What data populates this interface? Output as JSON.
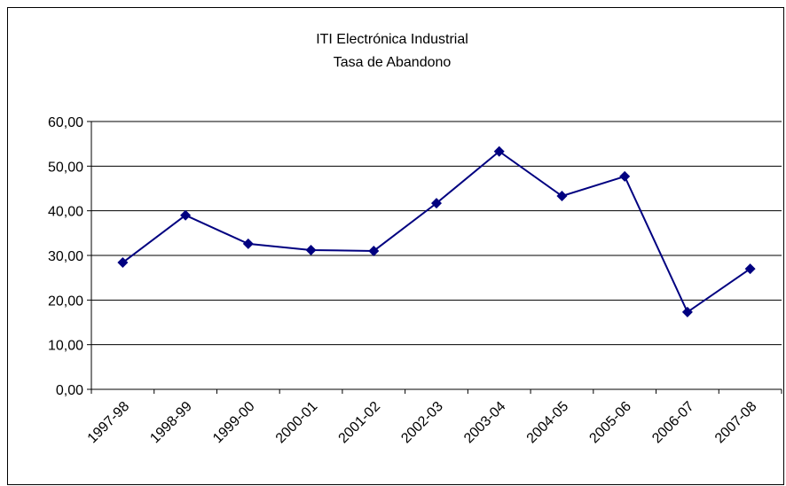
{
  "chart_data": {
    "type": "line",
    "title": "ITI Electrónica Industrial",
    "subtitle": "Tasa de Abandono",
    "categories": [
      "1997-98",
      "1998-99",
      "1999-00",
      "2000-01",
      "2001-02",
      "2002-03",
      "2003-04",
      "2004-05",
      "2005-06",
      "2006-07",
      "2007-08"
    ],
    "values": [
      28.4,
      39.0,
      32.6,
      31.2,
      31.0,
      41.7,
      53.3,
      43.3,
      47.7,
      17.3,
      27.0
    ],
    "color": "#000080",
    "ylim": [
      0,
      60
    ],
    "yticks": [
      {
        "value": 0,
        "label": "0,00"
      },
      {
        "value": 10,
        "label": "10,00"
      },
      {
        "value": 20,
        "label": "20,00"
      },
      {
        "value": 30,
        "label": "30,00"
      },
      {
        "value": 40,
        "label": "40,00"
      },
      {
        "value": 50,
        "label": "50,00"
      },
      {
        "value": 60,
        "label": "60,00"
      }
    ],
    "grid": true
  }
}
